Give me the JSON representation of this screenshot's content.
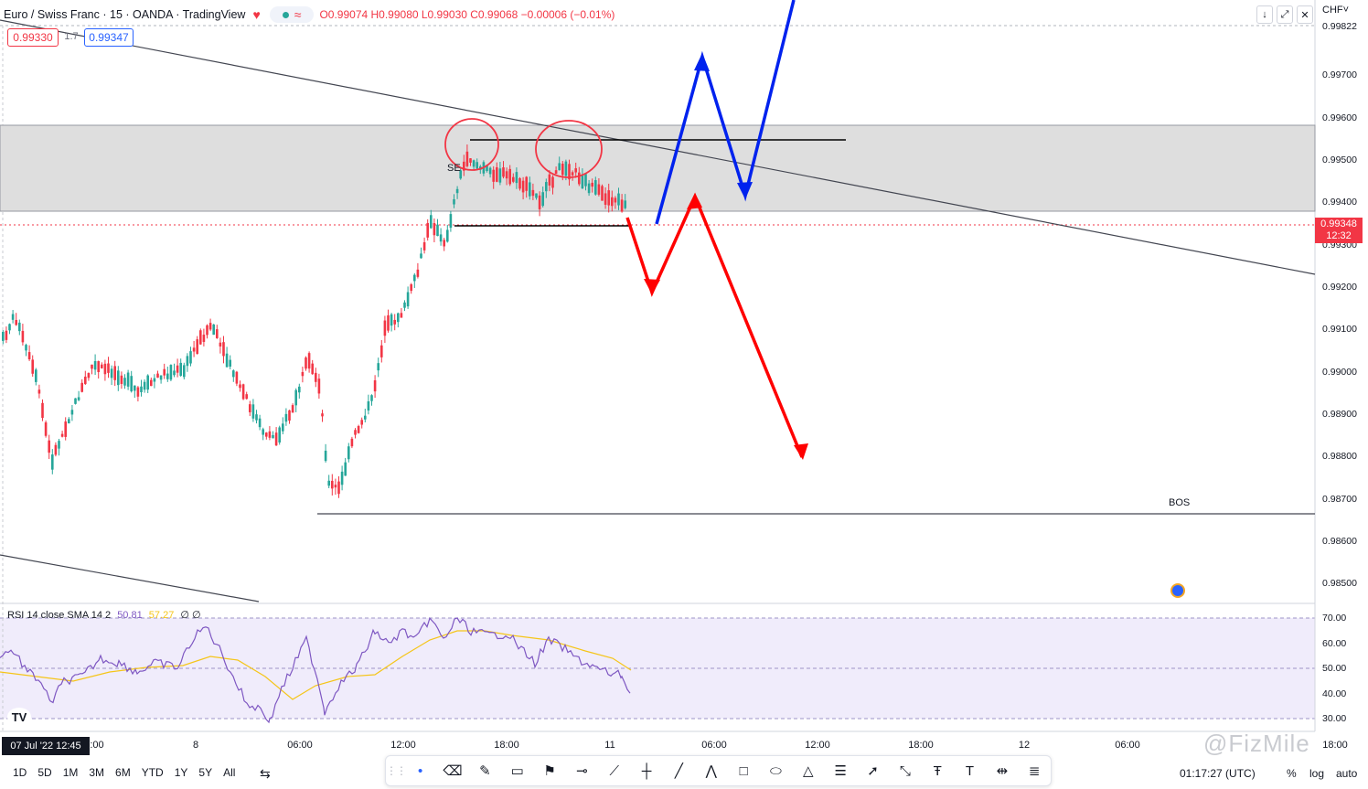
{
  "header": {
    "symbol": "Euro / Swiss Franc · 15 · OANDA · TradingView",
    "market_marker": "≈",
    "ohlc": "O0.99074 H0.99080 L0.99030 C0.99068 −0.00006 (−0.01%)"
  },
  "quote": {
    "sell": "0.99330",
    "spread": "1.7",
    "buy": "0.99347"
  },
  "currency": "CHF˅",
  "price_axis": {
    "labels": [
      "0.99822",
      "0.99700",
      "0.99600",
      "0.99500",
      "0.99400",
      "0.99300",
      "0.99200",
      "0.99100",
      "0.99000",
      "0.98900",
      "0.98800",
      "0.98700",
      "0.98600",
      "0.98500"
    ],
    "current_price": "0.99348",
    "countdown": "12:32"
  },
  "rsi": {
    "label": "RSI 14 close SMA 14 2",
    "value": "50.81",
    "sma_value": "57.27",
    "extra": "∅ ∅",
    "axis_labels": [
      "70.00",
      "60.00",
      "50.00",
      "40.00",
      "30.00"
    ]
  },
  "annotations": {
    "bos": "BOS",
    "se": "SE"
  },
  "time_axis": {
    "date_badge": "07 Jul '22   12:45",
    "labels": [
      ":00",
      "8",
      "06:00",
      "12:00",
      "18:00",
      "11",
      "06:00",
      "12:00",
      "18:00",
      "12",
      "06:00",
      "18:00"
    ]
  },
  "timeframes": [
    "1D",
    "5D",
    "1M",
    "3M",
    "6M",
    "YTD",
    "1Y",
    "5Y",
    "All"
  ],
  "clock": "01:17:27 (UTC)",
  "axis_modes": [
    "%",
    "log",
    "auto"
  ],
  "watermark": "@FizMile",
  "colors": {
    "bull": "#26a69a",
    "bear": "#f23645",
    "arrow_red": "#ff0000",
    "arrow_blue": "#0022ee",
    "rsi": "#7e57c2",
    "rsi_sma": "#f5c518"
  },
  "drawing_tools": [
    "dot-icon",
    "eraser-icon",
    "brush-icon",
    "callout-icon",
    "flag-icon",
    "horizontal-ray-icon",
    "trend-line-icon",
    "vertical-line-icon",
    "line-icon",
    "path-icon",
    "rectangle-icon",
    "ellipse-icon",
    "triangle-icon",
    "fib-icon",
    "arrow-icon",
    "ray-icon",
    "text-icon",
    "text-note-icon",
    "measure-icon",
    "ruler-icon"
  ]
}
